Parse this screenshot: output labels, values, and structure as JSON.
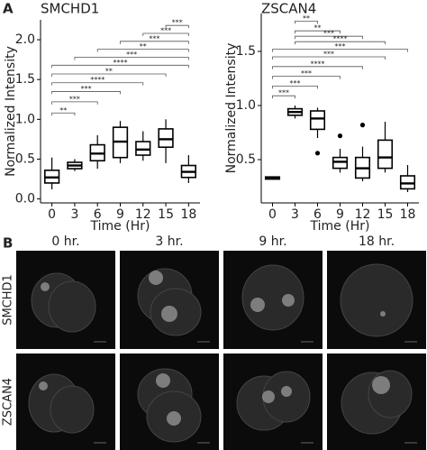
{
  "panel_labels": [
    "A",
    "B"
  ],
  "chart_data": [
    {
      "type": "box",
      "title": "SMCHD1",
      "x_label": "Time (Hr)",
      "y_label": "Normalized Intensity",
      "color": "#000000",
      "categories": [
        "0",
        "3",
        "6",
        "9",
        "12",
        "15",
        "18"
      ],
      "boxes": [
        {
          "low": 0.12,
          "q1": 0.2,
          "median": 0.27,
          "q3": 0.36,
          "high": 0.52,
          "outliers": []
        },
        {
          "low": 0.35,
          "q1": 0.38,
          "median": 0.42,
          "q3": 0.46,
          "high": 0.5,
          "outliers": []
        },
        {
          "low": 0.38,
          "q1": 0.48,
          "median": 0.57,
          "q3": 0.68,
          "high": 0.8,
          "outliers": []
        },
        {
          "low": 0.45,
          "q1": 0.52,
          "median": 0.72,
          "q3": 0.9,
          "high": 0.98,
          "outliers": []
        },
        {
          "low": 0.48,
          "q1": 0.55,
          "median": 0.62,
          "q3": 0.72,
          "high": 0.85,
          "outliers": []
        },
        {
          "low": 0.45,
          "q1": 0.65,
          "median": 0.75,
          "q3": 0.88,
          "high": 1.0,
          "outliers": []
        },
        {
          "low": 0.2,
          "q1": 0.27,
          "median": 0.34,
          "q3": 0.42,
          "high": 0.55,
          "outliers": []
        }
      ],
      "ylim": [
        -0.05,
        2.25
      ],
      "yticks": [
        {
          "value": 0,
          "label": "0.0"
        },
        0.5,
        {
          "value": 1,
          "label": "1.0"
        },
        1.5,
        {
          "value": 2,
          "label": "2.0"
        }
      ],
      "brackets": [
        {
          "from": "0",
          "to": "3",
          "y": 1.08,
          "label": "**"
        },
        {
          "from": "0",
          "to": "6",
          "y": 1.22,
          "label": "***"
        },
        {
          "from": "0",
          "to": "9",
          "y": 1.35,
          "label": "***"
        },
        {
          "from": "0",
          "to": "12",
          "y": 1.46,
          "label": "****"
        },
        {
          "from": "0",
          "to": "15",
          "y": 1.57,
          "label": "**"
        },
        {
          "from": "0",
          "to": "18",
          "y": 1.68,
          "label": "****"
        },
        {
          "from": "3",
          "to": "18",
          "y": 1.78,
          "label": "***"
        },
        {
          "from": "6",
          "to": "18",
          "y": 1.88,
          "label": "**"
        },
        {
          "from": "9",
          "to": "18",
          "y": 1.98,
          "label": "***"
        },
        {
          "from": "12",
          "to": "18",
          "y": 2.08,
          "label": "***"
        },
        {
          "from": "15",
          "to": "18",
          "y": 2.18,
          "label": "***"
        }
      ]
    },
    {
      "type": "box",
      "title": "ZSCAN4",
      "x_label": "Time (Hr)",
      "y_label": "Normalized Intensity",
      "color": "#000000",
      "categories": [
        "0",
        "3",
        "6",
        "9",
        "12",
        "15",
        "18"
      ],
      "boxes": [
        {
          "low": 0.32,
          "q1": 0.32,
          "median": 0.33,
          "q3": 0.34,
          "high": 0.34,
          "outliers": []
        },
        {
          "low": 0.88,
          "q1": 0.91,
          "median": 0.94,
          "q3": 0.97,
          "high": 1.0,
          "outliers": []
        },
        {
          "low": 0.7,
          "q1": 0.78,
          "median": 0.88,
          "q3": 0.95,
          "high": 0.98,
          "outliers": [
            0.56
          ]
        },
        {
          "low": 0.38,
          "q1": 0.42,
          "median": 0.48,
          "q3": 0.52,
          "high": 0.6,
          "outliers": [
            0.72
          ]
        },
        {
          "low": 0.3,
          "q1": 0.33,
          "median": 0.42,
          "q3": 0.52,
          "high": 0.62,
          "outliers": [
            0.82
          ]
        },
        {
          "low": 0.38,
          "q1": 0.42,
          "median": 0.52,
          "q3": 0.68,
          "high": 0.85,
          "outliers": []
        },
        {
          "low": 0.2,
          "q1": 0.23,
          "median": 0.28,
          "q3": 0.35,
          "high": 0.45,
          "outliers": []
        }
      ],
      "ylim": [
        0.1,
        1.85
      ],
      "yticks": [
        0.5,
        {
          "value": 1,
          "label": "1.0"
        },
        1.5
      ],
      "brackets": [
        {
          "from": "0",
          "to": "3",
          "y": 1.09,
          "label": "***"
        },
        {
          "from": "0",
          "to": "6",
          "y": 1.18,
          "label": "***"
        },
        {
          "from": "0",
          "to": "9",
          "y": 1.27,
          "label": "***"
        },
        {
          "from": "0",
          "to": "12",
          "y": 1.36,
          "label": "****"
        },
        {
          "from": "0",
          "to": "15",
          "y": 1.45,
          "label": "***"
        },
        {
          "from": "0",
          "to": "18",
          "y": 1.52,
          "label": "***"
        },
        {
          "from": "3",
          "to": "15",
          "y": 1.59,
          "label": "****"
        },
        {
          "from": "3",
          "to": "12",
          "y": 1.64,
          "label": "***"
        },
        {
          "from": "3",
          "to": "9",
          "y": 1.69,
          "label": "**"
        },
        {
          "from": "3",
          "to": "6",
          "y": 1.78,
          "label": "**"
        }
      ]
    }
  ],
  "image_panel": {
    "columns": [
      "0 hr.",
      "3 hr.",
      "9 hr.",
      "18 hr."
    ],
    "rows": [
      "SMCHD1",
      "ZSCAN4"
    ]
  }
}
